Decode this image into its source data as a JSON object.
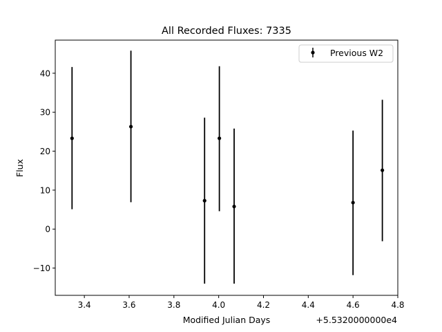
{
  "chart_data": {
    "type": "scatter",
    "title": "All Recorded Fluxes: 7335",
    "xlabel": "Modified Julian Days",
    "ylabel": "Flux",
    "x_offset_label": "+5.5320000000e4",
    "xlim": [
      3.27,
      4.8
    ],
    "ylim": [
      -17.0,
      48.5
    ],
    "x_ticks": [
      3.4,
      3.6,
      3.8,
      4.0,
      4.2,
      4.4,
      4.6,
      4.8
    ],
    "x_tick_labels": [
      "3.4",
      "3.6",
      "3.8",
      "4.0",
      "4.2",
      "4.4",
      "4.6",
      "4.8"
    ],
    "y_ticks": [
      -10,
      0,
      10,
      20,
      30,
      40
    ],
    "y_tick_labels": [
      "−10",
      "0",
      "10",
      "20",
      "30",
      "40"
    ],
    "grid": false,
    "legend_position": "upper right",
    "series": [
      {
        "name": "Previous W2",
        "color": "#000000",
        "marker": "circle",
        "points": [
          {
            "x": 3.345,
            "y": 23.3,
            "yerr_low": 5.1,
            "yerr_high": 41.6
          },
          {
            "x": 3.608,
            "y": 26.3,
            "yerr_low": 6.9,
            "yerr_high": 45.8
          },
          {
            "x": 3.937,
            "y": 7.3,
            "yerr_low": -14.0,
            "yerr_high": 28.6
          },
          {
            "x": 4.003,
            "y": 23.3,
            "yerr_low": 4.6,
            "yerr_high": 41.8
          },
          {
            "x": 4.069,
            "y": 5.8,
            "yerr_low": -14.0,
            "yerr_high": 25.8
          },
          {
            "x": 4.6,
            "y": 6.8,
            "yerr_low": -11.8,
            "yerr_high": 25.3
          },
          {
            "x": 4.731,
            "y": 15.1,
            "yerr_low": -3.1,
            "yerr_high": 33.2
          }
        ]
      }
    ]
  }
}
